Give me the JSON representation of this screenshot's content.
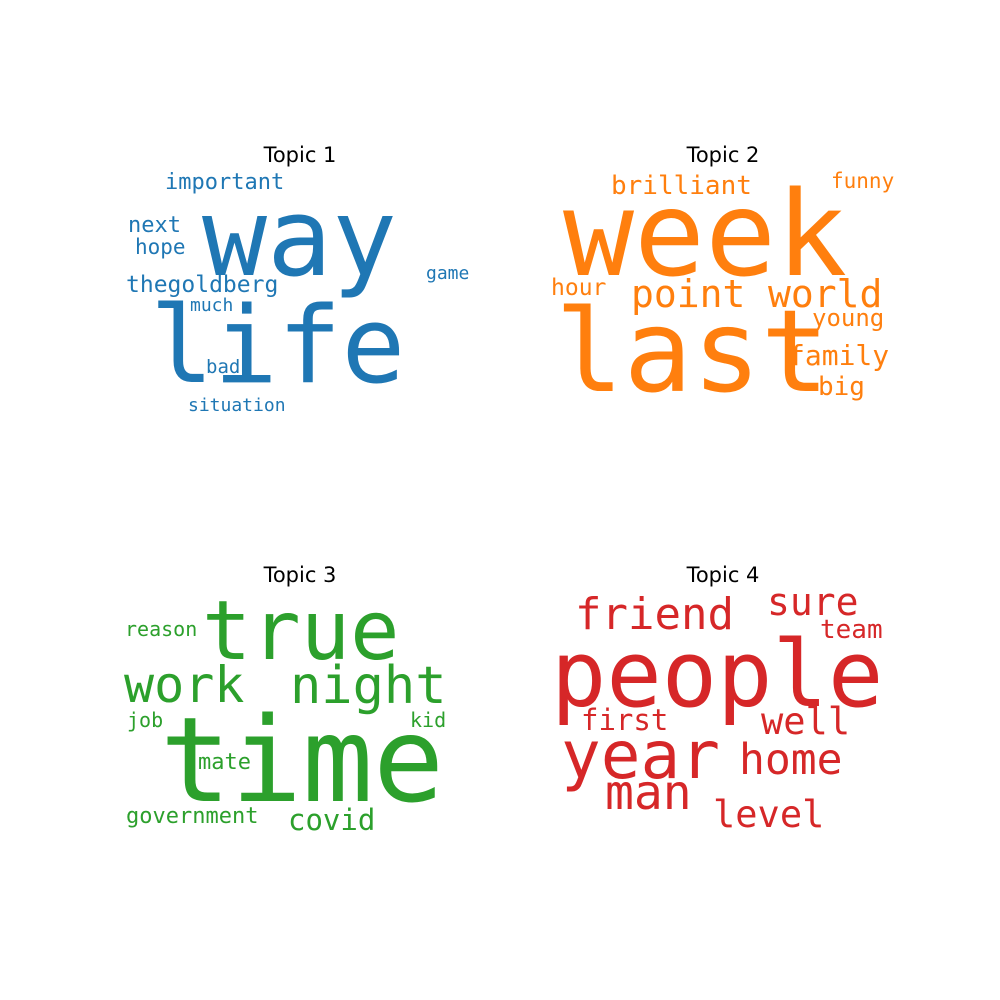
{
  "panels": [
    {
      "title": "Topic 1",
      "color": "#1f77b4",
      "words": [
        "way",
        "life",
        "important",
        "next",
        "hope",
        "thegoldberg",
        "much",
        "game",
        "bad",
        "situation"
      ]
    },
    {
      "title": "Topic 2",
      "color": "#ff7f0e",
      "words": [
        "week",
        "last",
        "brilliant",
        "funny",
        "hour",
        "point",
        "world",
        "young",
        "family",
        "big"
      ]
    },
    {
      "title": "Topic 3",
      "color": "#2ca02c",
      "words": [
        "true",
        "time",
        "reason",
        "work",
        "night",
        "job",
        "kid",
        "mate",
        "government",
        "covid"
      ]
    },
    {
      "title": "Topic 4",
      "color": "#d62728",
      "words": [
        "people",
        "friend",
        "sure",
        "team",
        "first",
        "well",
        "year",
        "home",
        "man",
        "level"
      ]
    }
  ]
}
